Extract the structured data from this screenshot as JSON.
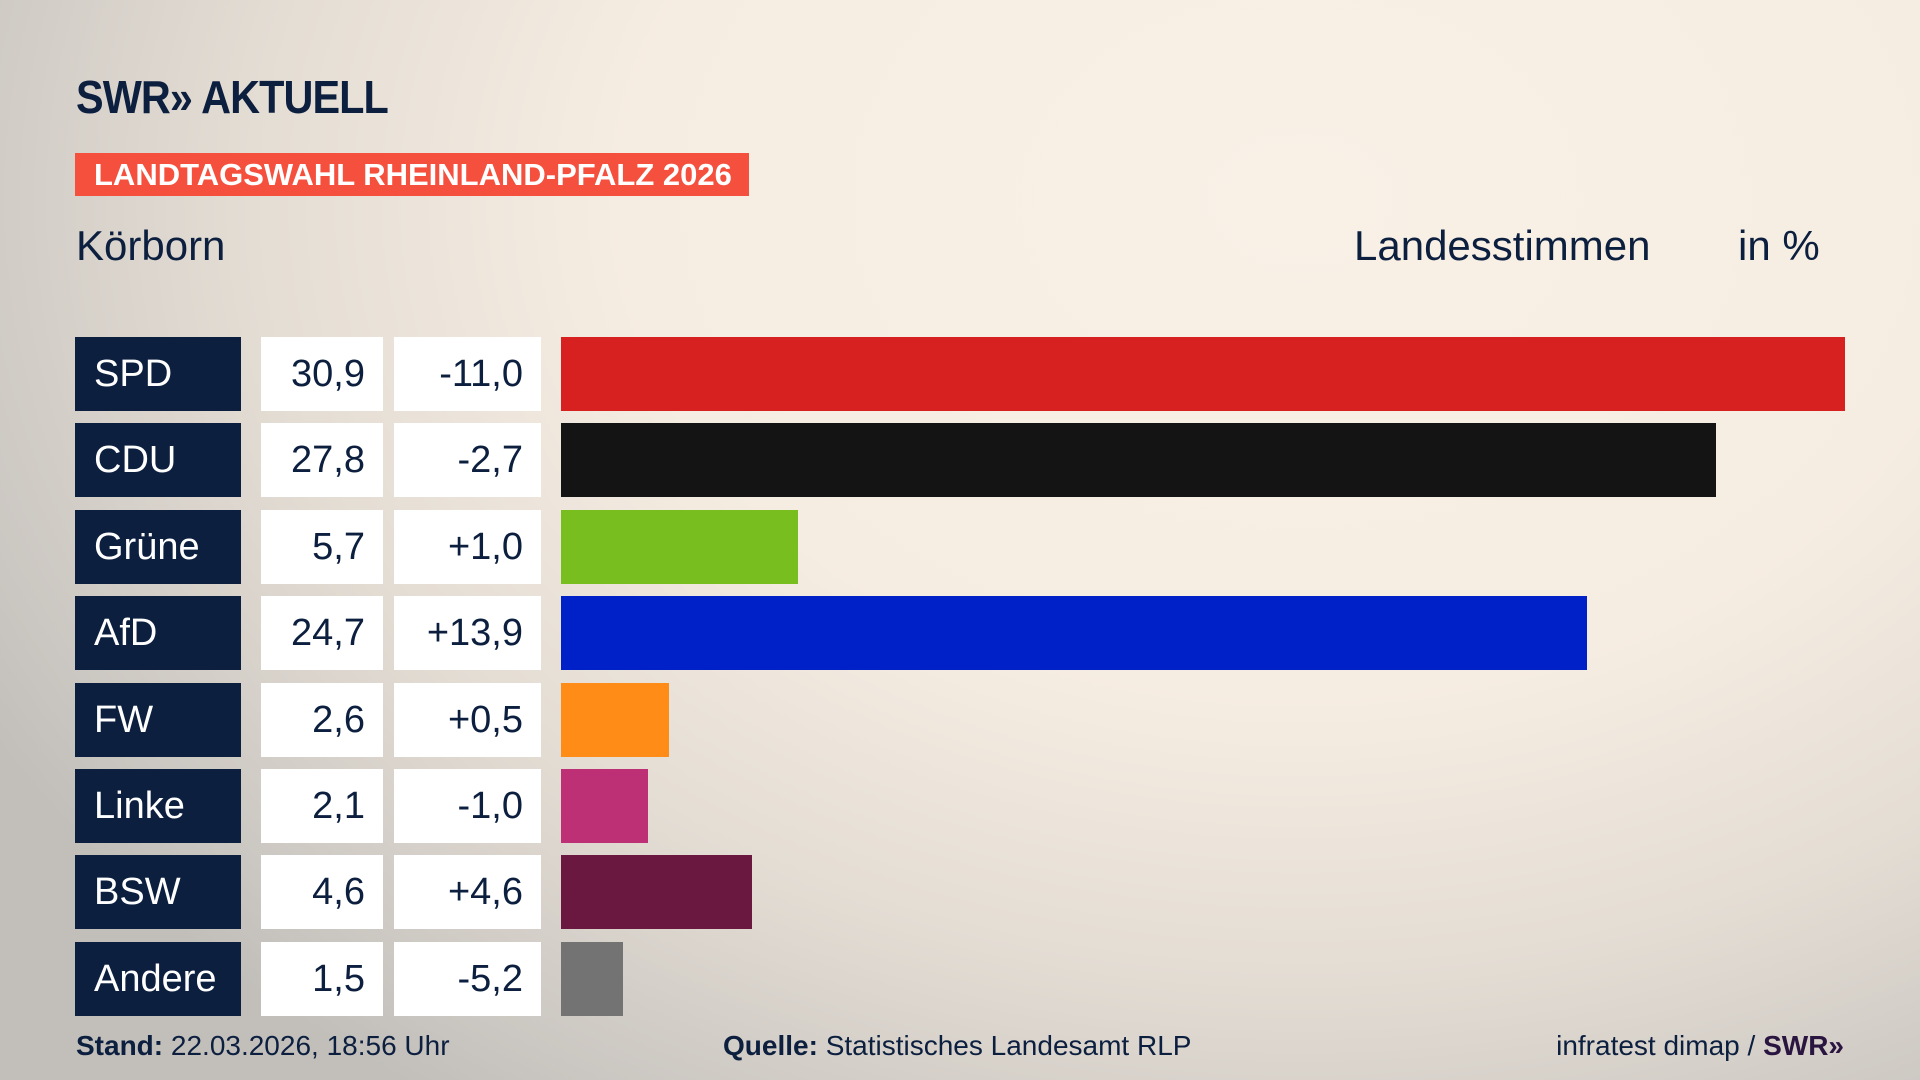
{
  "header": {
    "logo": "SWR» AKTUELL",
    "banner": "LANDTAGSWAHL RHEINLAND-PFALZ 2026",
    "location": "Körborn",
    "metric": "Landesstimmen",
    "unit": "in %"
  },
  "chart_data": {
    "type": "bar",
    "orientation": "horizontal",
    "categories": [
      "SPD",
      "CDU",
      "Grüne",
      "AfD",
      "FW",
      "Linke",
      "BSW",
      "Andere"
    ],
    "values": [
      30.9,
      27.8,
      5.7,
      24.7,
      2.6,
      2.1,
      4.6,
      1.5
    ],
    "value_labels": [
      "30,9",
      "27,8",
      "5,7",
      "24,7",
      "2,6",
      "2,1",
      "4,6",
      "1,5"
    ],
    "change_labels": [
      "-11,0",
      "-2,7",
      "+1,0",
      "+13,9",
      "+0,5",
      "-1,0",
      "+4,6",
      "-5,2"
    ],
    "changes": [
      -11.0,
      -2.7,
      1.0,
      13.9,
      0.5,
      -1.0,
      4.6,
      -5.2
    ],
    "colors": [
      "#d72020",
      "#141414",
      "#78be1e",
      "#0021c8",
      "#ff8c16",
      "#bd3075",
      "#6a1840",
      "#737373"
    ],
    "title": "Landesstimmen",
    "ylabel": "in %",
    "grid": false
  },
  "footer": {
    "stand_label": "Stand:",
    "stand_value": " 22.03.2026, 18:56 Uhr",
    "source_label": "Quelle:",
    "source_value": " Statistisches Landesamt RLP",
    "credit": "infratest dimap / ",
    "credit_logo": "SWR»"
  }
}
